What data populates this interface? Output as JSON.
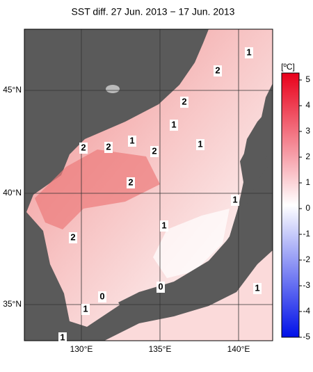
{
  "title": "SST diff. 27 Jun. 2013 − 17 Jun. 2013",
  "lat_labels": [
    "45°N",
    "40°N",
    "35°N"
  ],
  "lon_labels": [
    "130°E",
    "135°E",
    "140°E"
  ],
  "colorbar": {
    "unit": "[ºC]",
    "ticks": [
      5,
      4,
      3,
      2,
      1,
      0,
      -1,
      -2,
      -3,
      -4,
      -5
    ]
  },
  "contour_labels": [
    "1",
    "2",
    "2",
    "1",
    "1",
    "2",
    "2",
    "1",
    "2",
    "2",
    "1",
    "1",
    "2",
    "0",
    "1",
    "1",
    "1",
    "0"
  ]
}
